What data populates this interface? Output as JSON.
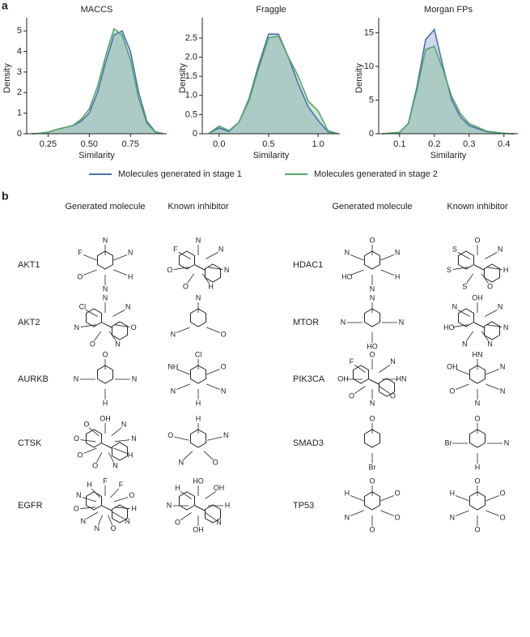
{
  "panel_a_label": "a",
  "chart_data": [
    {
      "type": "line",
      "title": "MACCS",
      "xlabel": "Similarity",
      "ylabel": "Density",
      "x": [
        0.15,
        0.2,
        0.25,
        0.3,
        0.35,
        0.4,
        0.45,
        0.5,
        0.55,
        0.6,
        0.65,
        0.7,
        0.75,
        0.8,
        0.85,
        0.9,
        0.95
      ],
      "series": [
        {
          "name": "Molecules generated in stage 1",
          "color": "#4c72b0",
          "values": [
            0,
            0.02,
            0.08,
            0.2,
            0.3,
            0.4,
            0.6,
            1.0,
            2.0,
            3.5,
            4.8,
            5.0,
            4.0,
            2.0,
            0.6,
            0.1,
            0
          ]
        },
        {
          "name": "Molecules generated in stage 2",
          "color": "#55a868",
          "values": [
            0,
            0.02,
            0.08,
            0.2,
            0.3,
            0.4,
            0.7,
            1.2,
            2.3,
            3.8,
            5.1,
            4.8,
            3.6,
            1.7,
            0.5,
            0.08,
            0
          ]
        }
      ],
      "xlim": [
        0.12,
        0.97
      ],
      "ylim": [
        0,
        5.4
      ],
      "xticks": [
        0.25,
        {
          "value": 0.5,
          "label": "0.50"
        },
        0.75
      ],
      "yticks": [
        0,
        1,
        2,
        3,
        4,
        5
      ]
    },
    {
      "type": "line",
      "title": "Fraggle",
      "xlabel": "Similarity",
      "ylabel": "Density",
      "x": [
        -0.1,
        0,
        0.1,
        0.2,
        0.3,
        0.4,
        0.5,
        0.6,
        0.7,
        0.8,
        0.9,
        1.0,
        1.1,
        1.2
      ],
      "series": [
        {
          "name": "Molecules generated in stage 1",
          "color": "#4c72b0",
          "values": [
            0.02,
            0.15,
            0.06,
            0.3,
            0.9,
            1.8,
            2.6,
            2.6,
            2.0,
            1.3,
            0.7,
            0.35,
            0.05,
            0
          ]
        },
        {
          "name": "Molecules generated in stage 2",
          "color": "#55a868",
          "values": [
            0.02,
            0.2,
            0.08,
            0.3,
            0.85,
            1.7,
            2.5,
            2.55,
            2.0,
            1.5,
            0.85,
            0.6,
            0.08,
            0
          ]
        }
      ],
      "xlim": [
        -0.17,
        1.22
      ],
      "ylim": [
        0,
        2.9
      ],
      "xticks": [
        {
          "value": 0,
          "label": "0.0"
        },
        0.5,
        {
          "value": 1,
          "label": "1.0"
        }
      ],
      "yticks": [
        0,
        0.5,
        {
          "value": 1,
          "label": "1.0"
        },
        1.5,
        {
          "value": 2,
          "label": "2.0"
        },
        2.5
      ]
    },
    {
      "type": "line",
      "title": "Morgan FPs",
      "xlabel": "Similarity",
      "ylabel": "Density",
      "x": [
        0.05,
        0.1,
        0.125,
        0.15,
        0.175,
        0.2,
        0.225,
        0.25,
        0.275,
        0.3,
        0.35,
        0.4,
        0.43
      ],
      "series": [
        {
          "name": "Molecules generated in stage 1",
          "color": "#4c72b0",
          "values": [
            0,
            0.2,
            1.5,
            7,
            14,
            15.5,
            10,
            5,
            2.5,
            1.2,
            0.3,
            0.05,
            0
          ]
        },
        {
          "name": "Molecules generated in stage 2",
          "color": "#55a868",
          "values": [
            0,
            0.2,
            1.5,
            6.5,
            12.5,
            13,
            9.5,
            5.5,
            3,
            1.5,
            0.4,
            0.05,
            0
          ]
        }
      ],
      "xlim": [
        0.04,
        0.44
      ],
      "ylim": [
        0,
        16.5
      ],
      "xticks": [
        0.1,
        0.2,
        0.3,
        0.4
      ],
      "yticks": [
        0,
        5,
        10,
        15
      ]
    }
  ],
  "panel_b": {
    "label": "b",
    "headers": [
      "Generated molecule",
      "Known inhibitor",
      "Generated molecule",
      "Known inhibitor"
    ],
    "rows": [
      {
        "target": "AKT1",
        "generated": [
          "N",
          "N",
          "H",
          "N",
          "O",
          "F"
        ],
        "known": [
          "N",
          "N",
          "N",
          "H",
          "O",
          "O",
          "F"
        ]
      },
      {
        "target": "AKT2",
        "generated": [
          "N",
          "N",
          "O",
          "N",
          "O",
          "N",
          "Cl"
        ],
        "known": [
          "N",
          "O",
          "N"
        ]
      },
      {
        "target": "AURKB",
        "generated": [
          "O",
          "N",
          "H",
          "N"
        ],
        "known": [
          "Cl",
          "O",
          "N",
          "H",
          "N",
          "NH"
        ]
      },
      {
        "target": "CTSK",
        "generated": [
          "OH",
          "N",
          "N",
          "H",
          "N",
          "O",
          "O",
          "O",
          "O"
        ],
        "known": [
          "H",
          "N",
          "O",
          "N",
          "O"
        ]
      },
      {
        "target": "EGFR",
        "generated": [
          "F",
          "F",
          "O",
          "H",
          "N",
          "O",
          "N",
          "N",
          "O",
          "N",
          "H"
        ],
        "known": [
          "HO",
          "OH",
          "H",
          "N",
          "OH",
          "O",
          "N",
          "H"
        ]
      },
      {
        "target": "HDAC1",
        "generated": [
          "O",
          "N",
          "H",
          "N",
          "HO",
          "N"
        ],
        "known": [
          "O",
          "N",
          "H",
          "O",
          "S",
          "S",
          "S"
        ]
      },
      {
        "target": "MTOR",
        "generated": [
          "N",
          "N",
          "HO",
          "N"
        ],
        "known": [
          "OH",
          "N",
          "N",
          "N",
          "N",
          "HO",
          "N"
        ]
      },
      {
        "target": "PIK3CA",
        "generated": [
          "O",
          "N",
          "HN",
          "O",
          "N",
          "O",
          "OH",
          "F"
        ],
        "known": [
          "HN",
          "N",
          "N",
          "N",
          "O",
          "OH"
        ]
      },
      {
        "target": "SMAD3",
        "generated": [
          "O",
          "Br"
        ],
        "known": [
          "O",
          "N",
          "H",
          "Br"
        ]
      },
      {
        "target": "TP53",
        "generated": [
          "O",
          "O",
          "O",
          "O",
          "N",
          "H"
        ],
        "known": [
          "O",
          "O",
          "O",
          "O",
          "N",
          "H"
        ]
      }
    ]
  }
}
